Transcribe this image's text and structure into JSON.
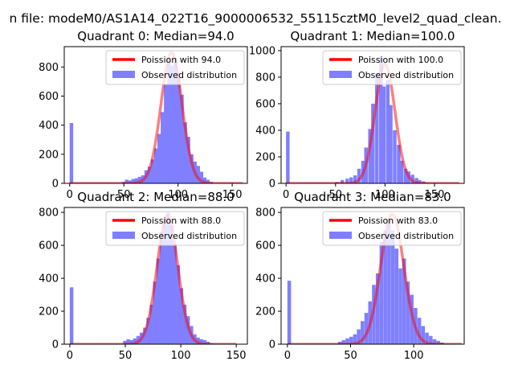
{
  "figure_title": "n file: modeM0/AS1A14_022T16_9000006532_55115cztM0_level2_quad_clean.",
  "colors": {
    "hist": "#7f7fff",
    "fit": "#ff0000",
    "axis": "#000000"
  },
  "chart_data": [
    {
      "type": "bar",
      "title": "Quadrant 0: Median=94.0",
      "xlim": [
        -5,
        164
      ],
      "ylim": [
        0,
        940
      ],
      "xticks": [
        0,
        50,
        100,
        150
      ],
      "yticks": [
        0,
        200,
        400,
        600,
        800
      ],
      "bin_width": 3.25,
      "series": [
        {
          "name": "Poission with 94.0",
          "kind": "line",
          "mean": 94.0,
          "peak": 900,
          "x_range": [
            0,
            160
          ]
        },
        {
          "name": "Observed distribution",
          "kind": "bar",
          "x": [
            0,
            48,
            51,
            54,
            57,
            60,
            63,
            66,
            69,
            72,
            75,
            78,
            81,
            84,
            87,
            90,
            93,
            96,
            99,
            102,
            105,
            108,
            111,
            114,
            117,
            120,
            123,
            126,
            129
          ],
          "values": [
            415,
            10,
            25,
            20,
            30,
            35,
            45,
            55,
            90,
            115,
            165,
            240,
            340,
            490,
            680,
            860,
            810,
            860,
            760,
            610,
            420,
            320,
            200,
            150,
            120,
            80,
            40,
            25,
            10
          ]
        }
      ]
    },
    {
      "type": "bar",
      "title": "Quadrant 1: Median=100.0",
      "xlim": [
        -5,
        180
      ],
      "ylim": [
        0,
        1030
      ],
      "xticks": [
        0,
        50,
        100,
        150
      ],
      "yticks": [
        0,
        200,
        400,
        600,
        800,
        1000
      ],
      "bin_width": 3.6,
      "series": [
        {
          "name": "Poission with 100.0",
          "kind": "line",
          "mean": 100.0,
          "peak": 900,
          "x_range": [
            0,
            175
          ]
        },
        {
          "name": "Observed distribution",
          "kind": "bar",
          "x": [
            0,
            50,
            55,
            60,
            64,
            68,
            72,
            76,
            79,
            83,
            86,
            90,
            94,
            97,
            101,
            104,
            108,
            112,
            115,
            119,
            122,
            126,
            130,
            133,
            137,
            140
          ],
          "values": [
            390,
            10,
            25,
            35,
            45,
            60,
            110,
            170,
            270,
            410,
            600,
            830,
            950,
            730,
            780,
            590,
            400,
            290,
            170,
            110,
            90,
            65,
            40,
            25,
            15,
            5
          ]
        }
      ]
    },
    {
      "type": "bar",
      "title": "Quadrant 2: Median=88.0",
      "xlim": [
        -5,
        160
      ],
      "ylim": [
        0,
        830
      ],
      "xticks": [
        0,
        50,
        100,
        150
      ],
      "yticks": [
        0,
        200,
        400,
        600,
        800
      ],
      "bin_width": 3.2,
      "series": [
        {
          "name": "Poission with 88.0",
          "kind": "line",
          "mean": 88.0,
          "peak": 780,
          "x_range": [
            0,
            150
          ]
        },
        {
          "name": "Observed distribution",
          "kind": "bar",
          "x": [
            0,
            48,
            51,
            54,
            57,
            60,
            63,
            66,
            69,
            72,
            75,
            78,
            81,
            84,
            87,
            90,
            93,
            96,
            99,
            102,
            105,
            108,
            111,
            114,
            117,
            120,
            123,
            126
          ],
          "values": [
            345,
            20,
            30,
            25,
            35,
            50,
            70,
            100,
            160,
            240,
            380,
            520,
            680,
            760,
            800,
            720,
            610,
            480,
            340,
            240,
            170,
            110,
            60,
            40,
            30,
            25,
            15,
            5
          ]
        }
      ]
    },
    {
      "type": "bar",
      "title": "Quadrant 3: Median=83.0",
      "xlim": [
        -5,
        140
      ],
      "ylim": [
        0,
        830
      ],
      "xticks": [
        0,
        50,
        100
      ],
      "yticks": [
        0,
        200,
        400,
        600,
        800
      ],
      "bin_width": 2.9,
      "series": [
        {
          "name": "Poission with 83.0",
          "kind": "line",
          "mean": 83.0,
          "peak": 790,
          "x_range": [
            0,
            138
          ]
        },
        {
          "name": "Observed distribution",
          "kind": "bar",
          "x": [
            0,
            40,
            43,
            46,
            49,
            52,
            55,
            58,
            61,
            64,
            67,
            70,
            73,
            76,
            79,
            82,
            85,
            88,
            91,
            94,
            97,
            100,
            103,
            106,
            109,
            112,
            115,
            118,
            121
          ],
          "values": [
            385,
            15,
            25,
            35,
            45,
            60,
            90,
            140,
            190,
            260,
            360,
            430,
            620,
            690,
            760,
            690,
            580,
            460,
            520,
            380,
            300,
            220,
            160,
            110,
            70,
            50,
            30,
            20,
            10
          ]
        }
      ]
    }
  ]
}
